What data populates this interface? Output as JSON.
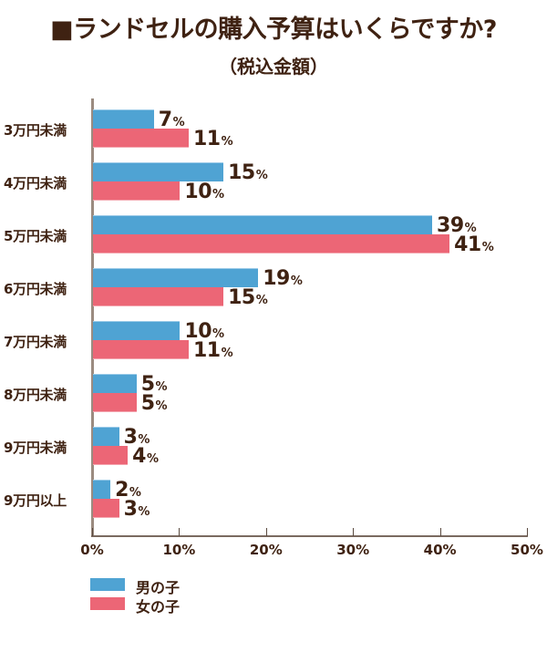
{
  "header": {
    "title": "■ランドセルの購入予算はいくらですか?",
    "subtitle": "（税込金額）"
  },
  "legend": {
    "boys": "男の子",
    "girls": "女の子"
  },
  "colors": {
    "boys": "#4fa3d3",
    "girls": "#ec6676",
    "text": "#3f2212"
  },
  "x_ticks": [
    "0%",
    "10%",
    "20%",
    "30%",
    "40%",
    "50%"
  ],
  "rows": [
    {
      "label": "3万円未満",
      "boys": "7",
      "girls": "11"
    },
    {
      "label": "4万円未満",
      "boys": "15",
      "girls": "10"
    },
    {
      "label": "5万円未満",
      "boys": "39",
      "girls": "41"
    },
    {
      "label": "6万円未満",
      "boys": "19",
      "girls": "15"
    },
    {
      "label": "7万円未満",
      "boys": "10",
      "girls": "11"
    },
    {
      "label": "8万円未満",
      "boys": "5",
      "girls": "5"
    },
    {
      "label": "9万円未満",
      "boys": "3",
      "girls": "4"
    },
    {
      "label": "9万円以上",
      "boys": "2",
      "girls": "3"
    }
  ],
  "pct_symbol": "%",
  "chart_data": {
    "type": "bar",
    "orientation": "horizontal",
    "title": "■ランドセルの購入予算はいくらですか?",
    "subtitle": "（税込金額）",
    "categories": [
      "3万円未満",
      "4万円未満",
      "5万円未満",
      "6万円未満",
      "7万円未満",
      "8万円未満",
      "9万円未満",
      "9万円以上"
    ],
    "series": [
      {
        "name": "男の子",
        "color": "#4fa3d3",
        "values": [
          7,
          15,
          39,
          19,
          10,
          5,
          3,
          2
        ]
      },
      {
        "name": "女の子",
        "color": "#ec6676",
        "values": [
          11,
          10,
          41,
          15,
          11,
          5,
          4,
          3
        ]
      }
    ],
    "xlabel": "",
    "ylabel": "",
    "xlim": [
      0,
      50
    ],
    "x_ticks": [
      "0%",
      "10%",
      "20%",
      "30%",
      "40%",
      "50%"
    ],
    "unit": "%",
    "grid": false,
    "legend_position": "bottom-left"
  }
}
